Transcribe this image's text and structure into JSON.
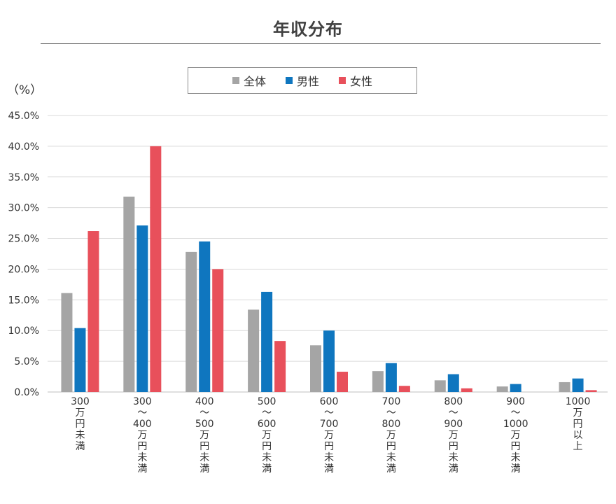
{
  "chart_data": {
    "type": "bar",
    "title": "年収分布",
    "unit_label": "（%）",
    "ylim": [
      0,
      45
    ],
    "yticks": [
      "0.0%",
      "5.0%",
      "10.0%",
      "15.0%",
      "20.0%",
      "25.0%",
      "30.0%",
      "35.0%",
      "40.0%",
      "45.0%"
    ],
    "ytick_values": [
      0,
      5,
      10,
      15,
      20,
      25,
      30,
      35,
      40,
      45
    ],
    "grid": true,
    "legend_position": "top-center",
    "categories": [
      [
        "300",
        "万",
        "円",
        "未",
        "満"
      ],
      [
        "300",
        "～",
        "400",
        "万",
        "円",
        "未",
        "満"
      ],
      [
        "400",
        "～",
        "500",
        "万",
        "円",
        "未",
        "満"
      ],
      [
        "500",
        "～",
        "600",
        "万",
        "円",
        "未",
        "満"
      ],
      [
        "600",
        "～",
        "700",
        "万",
        "円",
        "未",
        "満"
      ],
      [
        "700",
        "～",
        "800",
        "万",
        "円",
        "未",
        "満"
      ],
      [
        "800",
        "～",
        "900",
        "万",
        "円",
        "未",
        "満"
      ],
      [
        "900",
        "～",
        "1000",
        "万",
        "円",
        "未",
        "満"
      ],
      [
        "1000",
        "万",
        "円",
        "以",
        "上"
      ]
    ],
    "series": [
      {
        "name": "全体",
        "color": "#a5a5a5",
        "values": [
          16.1,
          31.8,
          22.8,
          13.4,
          7.6,
          3.4,
          1.9,
          0.9,
          1.6
        ]
      },
      {
        "name": "男性",
        "color": "#0f76bf",
        "values": [
          10.4,
          27.1,
          24.5,
          16.3,
          10.0,
          4.7,
          2.9,
          1.3,
          2.2
        ]
      },
      {
        "name": "女性",
        "color": "#e8505b",
        "values": [
          26.2,
          40.0,
          20.0,
          8.3,
          3.3,
          1.0,
          0.6,
          0.0,
          0.3
        ]
      }
    ]
  }
}
